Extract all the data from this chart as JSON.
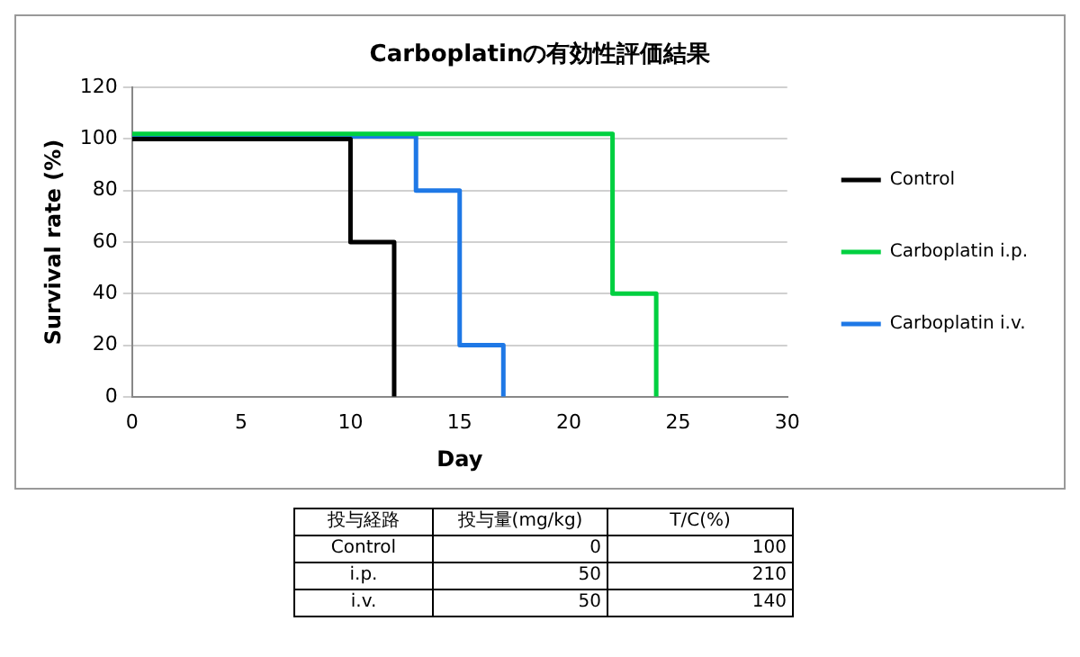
{
  "chart_data": [
    {
      "type": "step",
      "title": "Carboplatinの有効性評価結果",
      "xlabel": "Day",
      "ylabel": "Survival rate (%)",
      "xlim": [
        0,
        30
      ],
      "xticks": [
        0,
        5,
        10,
        15,
        20,
        25,
        30
      ],
      "ylim": [
        0,
        120
      ],
      "yticks": [
        0,
        20,
        40,
        60,
        80,
        100,
        120
      ],
      "grid": "y",
      "legend": "right",
      "marker": "none",
      "line_style": "solid",
      "series": [
        {
          "name": "Control",
          "color": "#000000",
          "x": [
            0,
            10,
            12
          ],
          "values": [
            100,
            60,
            0
          ]
        },
        {
          "name": "Carboplatin i.p.",
          "color": "#00d040",
          "x": [
            0,
            22,
            24
          ],
          "values": [
            102,
            40,
            0
          ]
        },
        {
          "name": "Carboplatin i.v.",
          "color": "#1e78e6",
          "x": [
            0,
            13,
            15,
            17
          ],
          "values": [
            101,
            80,
            20,
            0
          ]
        }
      ]
    },
    {
      "type": "other",
      "xlabel": "投与経路",
      "categories": [
        "Control",
        "i.p.",
        "i.v."
      ],
      "data_labels": true,
      "series": [
        {
          "name": "投与量(mg/kg)",
          "values": [
            0,
            50,
            50
          ]
        },
        {
          "name": "T/C(%)",
          "values": [
            100,
            210,
            140
          ]
        }
      ]
    }
  ]
}
